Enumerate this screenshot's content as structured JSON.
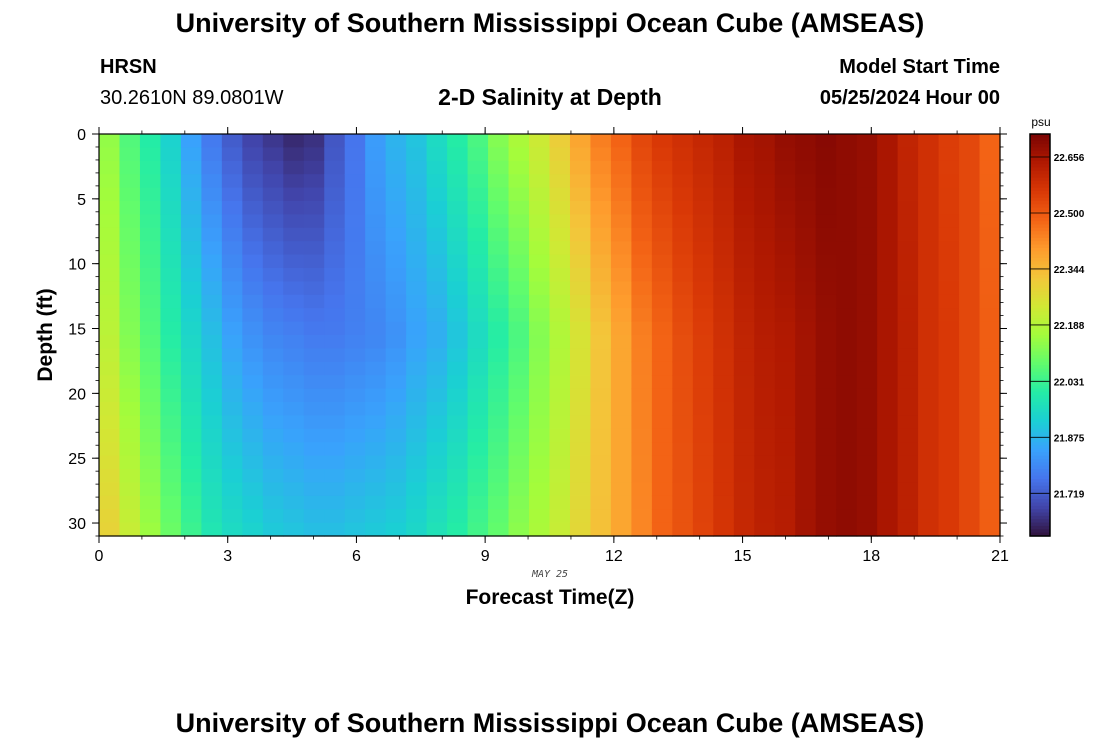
{
  "header": {
    "title": "University of Southern Mississippi Ocean Cube (AMSEAS)",
    "station": "HRSN",
    "coords": "30.2610N  89.0801W",
    "subtitle": "2-D Salinity at Depth",
    "start_label": "Model Start Time",
    "start_value": "05/25/2024 Hour 00"
  },
  "footer": {
    "title": "University of Southern Mississippi Ocean Cube (AMSEAS)"
  },
  "chart_data": {
    "type": "heatmap",
    "title": "2-D Salinity at Depth",
    "xlabel": "Forecast Time(Z)",
    "ylabel": "Depth (ft)",
    "date_label": "MAY 25",
    "xlim": [
      0,
      21
    ],
    "ylim": [
      31,
      0
    ],
    "x_ticks": [
      "0",
      "3",
      "6",
      "9",
      "12",
      "15",
      "18",
      "21"
    ],
    "y_ticks": [
      "0",
      "5",
      "10",
      "15",
      "20",
      "25",
      "30"
    ],
    "colorbar": {
      "unit": "psu",
      "ticks": [
        "22.656",
        "22.500",
        "22.344",
        "22.188",
        "22.031",
        "21.875",
        "21.719"
      ],
      "tick_values": [
        22.656,
        22.5,
        22.344,
        22.188,
        22.031,
        21.875,
        21.719
      ],
      "range": [
        21.6,
        22.72
      ],
      "colors": [
        "#30123b",
        "#4145ab",
        "#4675ed",
        "#39a2fc",
        "#1bcfd4",
        "#24eca6",
        "#61fc6c",
        "#a4fc3b",
        "#d1e834",
        "#f3c63a",
        "#fe9b2d",
        "#f36315",
        "#d93806",
        "#b11901",
        "#7a0403"
      ]
    },
    "surface_salinity": [
      22.14,
      22.06,
      22.0,
      21.93,
      21.84,
      21.77,
      21.72,
      21.68,
      21.66,
      21.64,
      21.65,
      21.71,
      21.76,
      21.83,
      21.87,
      21.9,
      21.95,
      22.0,
      22.05,
      22.12,
      22.17,
      22.23,
      22.3,
      22.38,
      22.44,
      22.48,
      22.53,
      22.56,
      22.58,
      22.6,
      22.62,
      22.65,
      22.66,
      22.68,
      22.69,
      22.7,
      22.69,
      22.68,
      22.65,
      22.61,
      22.58,
      22.55,
      22.53,
      22.48
    ],
    "mid_salinity": [
      22.2,
      22.12,
      22.06,
      22.0,
      21.94,
      21.89,
      21.84,
      21.81,
      21.79,
      21.78,
      21.77,
      21.77,
      21.78,
      21.79,
      21.81,
      21.84,
      21.86,
      21.9,
      21.95,
      22.0,
      22.05,
      22.12,
      22.18,
      22.25,
      22.32,
      22.38,
      22.44,
      22.48,
      22.52,
      22.55,
      22.58,
      22.61,
      22.63,
      22.64,
      22.66,
      22.68,
      22.69,
      22.68,
      22.65,
      22.62,
      22.58,
      22.56,
      22.53,
      22.49
    ],
    "bottom_salinity": [
      22.29,
      22.22,
      22.15,
      22.09,
      22.03,
      21.98,
      21.95,
      21.93,
      21.91,
      21.9,
      21.89,
      21.89,
      21.9,
      21.91,
      21.92,
      21.94,
      21.97,
      22.0,
      22.04,
      22.08,
      22.13,
      22.17,
      22.22,
      22.28,
      22.33,
      22.38,
      22.43,
      22.48,
      22.51,
      22.54,
      22.57,
      22.6,
      22.62,
      22.63,
      22.66,
      22.68,
      22.69,
      22.68,
      22.65,
      22.62,
      22.58,
      22.56,
      22.53,
      22.49
    ]
  }
}
